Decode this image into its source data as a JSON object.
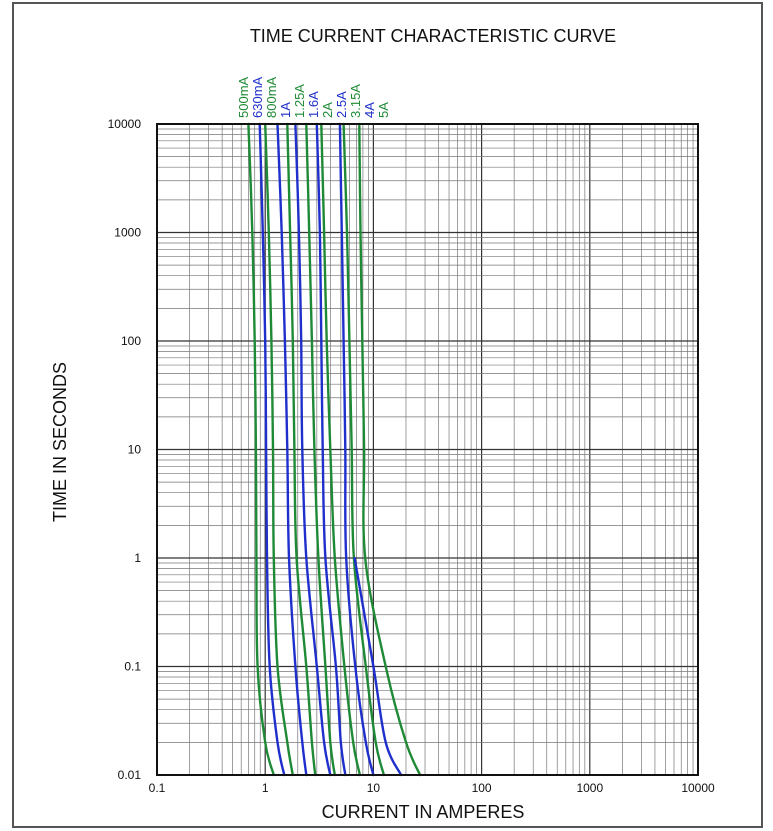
{
  "chart_data": {
    "type": "line",
    "title": "TIME CURRENT CHARACTERISTIC CURVE",
    "xlabel": "CURRENT IN AMPERES",
    "ylabel": "TIME IN SECONDS",
    "x_scale": "log",
    "y_scale": "log",
    "xlim": [
      0.1,
      10000
    ],
    "ylim": [
      0.01,
      10000
    ],
    "x_ticks": [
      "0.1",
      "1",
      "10",
      "100",
      "1000",
      "10000"
    ],
    "y_ticks": [
      "0.01",
      "0.1",
      "1",
      "10",
      "100",
      "1000",
      "10000"
    ],
    "grid": true,
    "legend": "series labels printed vertically above the plot area",
    "colors": {
      "green": "#1f8a36",
      "blue": "#1f2fcc"
    },
    "series": [
      {
        "name": "500mA",
        "color": "#1f8a36",
        "points": [
          [
            0.7,
            10000
          ],
          [
            0.76,
            1000
          ],
          [
            0.8,
            100
          ],
          [
            0.82,
            10
          ],
          [
            0.83,
            1
          ],
          [
            0.85,
            0.1
          ],
          [
            1.0,
            0.02
          ],
          [
            1.2,
            0.01
          ]
        ]
      },
      {
        "name": "630mA",
        "color": "#1f2fcc",
        "points": [
          [
            0.89,
            10000
          ],
          [
            0.95,
            1000
          ],
          [
            1.0,
            100
          ],
          [
            1.02,
            10
          ],
          [
            1.04,
            1
          ],
          [
            1.1,
            0.1
          ],
          [
            1.3,
            0.02
          ],
          [
            1.5,
            0.01
          ]
        ]
      },
      {
        "name": "800mA",
        "color": "#1f8a36",
        "points": [
          [
            1.0,
            10000
          ],
          [
            1.08,
            1000
          ],
          [
            1.14,
            100
          ],
          [
            1.18,
            10
          ],
          [
            1.2,
            1
          ],
          [
            1.3,
            0.1
          ],
          [
            1.6,
            0.02
          ],
          [
            1.8,
            0.01
          ]
        ]
      },
      {
        "name": "1A",
        "color": "#1f2fcc",
        "points": [
          [
            1.3,
            10000
          ],
          [
            1.42,
            1000
          ],
          [
            1.52,
            100
          ],
          [
            1.6,
            10
          ],
          [
            1.66,
            1
          ],
          [
            1.9,
            0.1
          ],
          [
            2.2,
            0.02
          ],
          [
            2.4,
            0.01
          ]
        ]
      },
      {
        "name": "1.25A",
        "color": "#1f8a36",
        "points": [
          [
            1.6,
            10000
          ],
          [
            1.7,
            1000
          ],
          [
            1.8,
            100
          ],
          [
            1.86,
            10
          ],
          [
            1.95,
            1
          ],
          [
            2.4,
            0.1
          ],
          [
            2.7,
            0.02
          ],
          [
            2.9,
            0.01
          ]
        ]
      },
      {
        "name": "1.6A",
        "color": "#1f2fcc",
        "points": [
          [
            1.9,
            10000
          ],
          [
            2.05,
            1000
          ],
          [
            2.15,
            100
          ],
          [
            2.2,
            10
          ],
          [
            2.4,
            1
          ],
          [
            3.0,
            0.1
          ],
          [
            3.5,
            0.02
          ],
          [
            4.0,
            0.01
          ]
        ]
      },
      {
        "name": "2A",
        "color": "#1f8a36",
        "points": [
          [
            2.4,
            10000
          ],
          [
            2.55,
            1000
          ],
          [
            2.7,
            100
          ],
          [
            2.85,
            10
          ],
          [
            3.1,
            1
          ],
          [
            3.6,
            0.1
          ],
          [
            4.0,
            0.02
          ],
          [
            4.4,
            0.01
          ]
        ]
      },
      {
        "name": "2.5A",
        "color": "#1f2fcc",
        "points": [
          [
            3.0,
            10000
          ],
          [
            3.2,
            1000
          ],
          [
            3.3,
            100
          ],
          [
            3.4,
            10
          ],
          [
            3.6,
            1
          ],
          [
            4.5,
            0.1
          ],
          [
            5.0,
            0.02
          ],
          [
            5.5,
            0.01
          ]
        ]
      },
      {
        "name": "3.15A",
        "color": "#1f8a36",
        "points": [
          [
            3.3,
            10000
          ],
          [
            3.5,
            1000
          ],
          [
            3.7,
            100
          ],
          [
            4.0,
            10
          ],
          [
            4.4,
            1
          ],
          [
            5.4,
            0.1
          ],
          [
            6.5,
            0.02
          ],
          [
            7.5,
            0.01
          ]
        ]
      },
      {
        "name": "4A",
        "color": "#1f2fcc",
        "points": [
          [
            4.9,
            10000
          ],
          [
            5.1,
            1000
          ],
          [
            5.3,
            100
          ],
          [
            5.5,
            10
          ],
          [
            5.6,
            1
          ],
          [
            6.8,
            0.1
          ],
          [
            8.5,
            0.02
          ],
          [
            10.0,
            0.01
          ]
        ]
      },
      {
        "name": "5A",
        "color": "#1f8a36",
        "points": [
          [
            5.3,
            10000
          ],
          [
            5.7,
            1000
          ],
          [
            6.0,
            100
          ],
          [
            6.3,
            10
          ],
          [
            6.6,
            1
          ],
          [
            8.5,
            0.1
          ],
          [
            10.5,
            0.02
          ],
          [
            12.5,
            0.01
          ]
        ]
      }
    ],
    "extra_curves": [
      {
        "color": "#1f2fcc",
        "points": [
          [
            6.7,
            1
          ],
          [
            10.0,
            0.1
          ],
          [
            13.0,
            0.02
          ],
          [
            18.0,
            0.01
          ]
        ]
      },
      {
        "color": "#1f8a36",
        "points": [
          [
            7.4,
            10000
          ],
          [
            7.6,
            1000
          ],
          [
            7.9,
            100
          ],
          [
            8.2,
            10
          ],
          [
            8.4,
            1
          ],
          [
            13.0,
            0.1
          ],
          [
            20.0,
            0.02
          ],
          [
            27.0,
            0.01
          ]
        ]
      }
    ]
  }
}
